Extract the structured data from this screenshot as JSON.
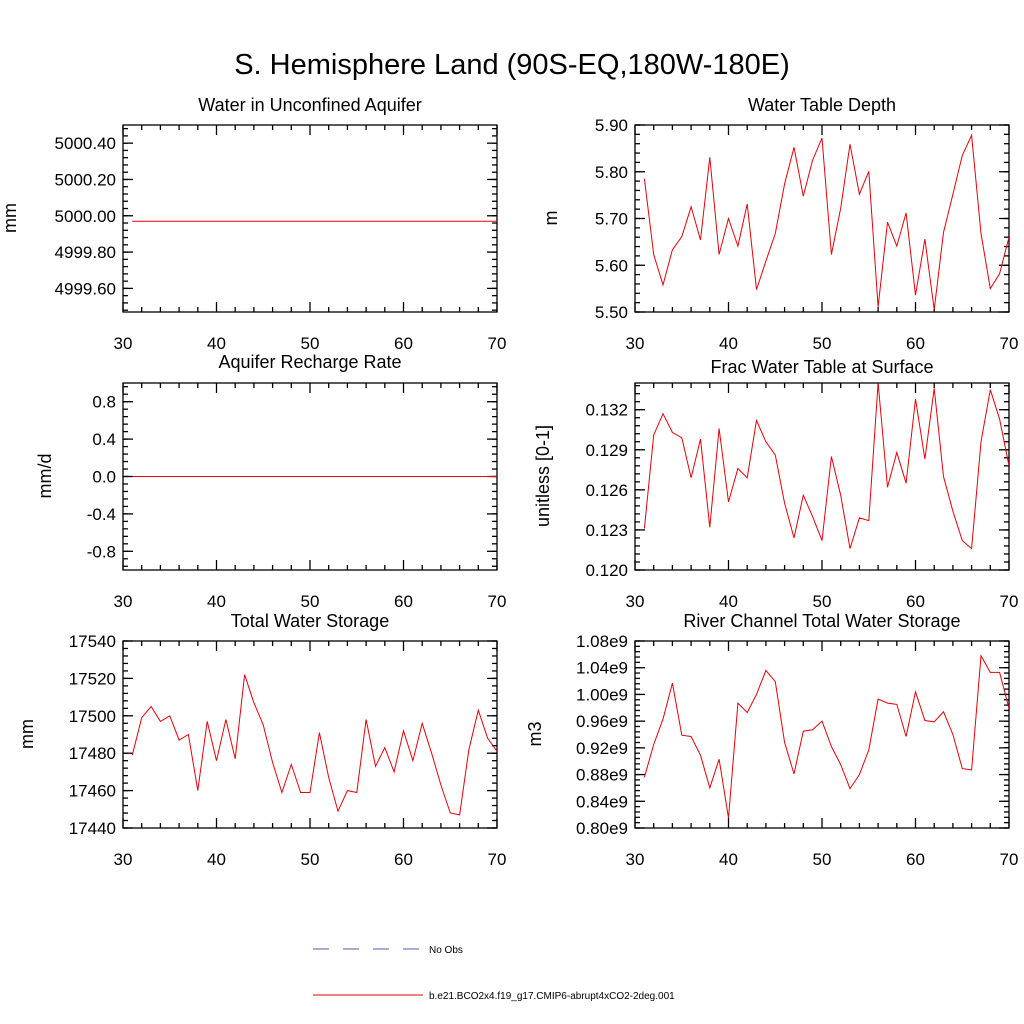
{
  "figure": {
    "title": "S. Hemisphere Land (90S-EQ,180W-180E)",
    "line_color": "#e8000b",
    "obs_color": "#4a5fb0",
    "axis_color": "#000000"
  },
  "legend": {
    "position": "bottom-center",
    "entries": [
      {
        "label": "No Obs",
        "style": "dashed",
        "color": "#4a5fb0"
      },
      {
        "label": "b.e21.BCO2x4.f19_g17.CMIP6-abrupt4xCO2-2deg.001",
        "style": "solid",
        "color": "#e8000b"
      }
    ]
  },
  "chart_data": [
    {
      "type": "line",
      "title": "Water in Unconfined Aquifer",
      "xlabel": "",
      "ylabel": "mm",
      "xlim": [
        30,
        70
      ],
      "ylim": [
        4999.47,
        5000.5
      ],
      "xticks": [
        30,
        40,
        50,
        60,
        70
      ],
      "yticks": [
        4999.6,
        4999.8,
        5000.0,
        5000.2,
        5000.4
      ],
      "ytick_labels": [
        "4999.60",
        "4999.80",
        "5000.00",
        "5000.20",
        "5000.40"
      ],
      "yminor_step": 0.04,
      "x": [
        31,
        70
      ],
      "y": [
        4999.97,
        4999.97
      ]
    },
    {
      "type": "line",
      "title": "Water Table Depth",
      "xlabel": "",
      "ylabel": "m",
      "xlim": [
        30,
        70
      ],
      "ylim": [
        5.5,
        5.9
      ],
      "xticks": [
        30,
        40,
        50,
        60,
        70
      ],
      "yticks": [
        5.5,
        5.6,
        5.7,
        5.8,
        5.9
      ],
      "ytick_labels": [
        "5.50",
        "5.60",
        "5.70",
        "5.80",
        "5.90"
      ],
      "yminor_step": 0.02,
      "x": [
        31,
        32,
        33,
        34,
        35,
        36,
        37,
        38,
        39,
        40,
        41,
        42,
        43,
        44,
        45,
        46,
        47,
        48,
        49,
        50,
        51,
        52,
        53,
        54,
        55,
        56,
        57,
        58,
        59,
        60,
        61,
        62,
        63,
        64,
        65,
        66,
        67,
        68,
        69,
        70
      ],
      "y": [
        5.785,
        5.623,
        5.558,
        5.633,
        5.661,
        5.725,
        5.654,
        5.831,
        5.623,
        5.7,
        5.641,
        5.731,
        5.548,
        5.609,
        5.668,
        5.774,
        5.852,
        5.748,
        5.825,
        5.872,
        5.623,
        5.722,
        5.859,
        5.752,
        5.801,
        5.511,
        5.692,
        5.641,
        5.712,
        5.536,
        5.656,
        5.505,
        5.67,
        5.752,
        5.835,
        5.878,
        5.668,
        5.55,
        5.582,
        5.66
      ]
    },
    {
      "type": "line",
      "title": "Aquifer Recharge Rate",
      "xlabel": "",
      "ylabel": "mm/d",
      "xlim": [
        30,
        70
      ],
      "ylim": [
        -1.0,
        1.0
      ],
      "xticks": [
        30,
        40,
        50,
        60,
        70
      ],
      "yticks": [
        -0.8,
        -0.4,
        0.0,
        0.4,
        0.8
      ],
      "ytick_labels": [
        "-0.8",
        "-0.4",
        "0.0",
        "0.4",
        "0.8"
      ],
      "yminor_step": 0.08,
      "x": [
        31,
        70
      ],
      "y": [
        0.0,
        0.0
      ]
    },
    {
      "type": "line",
      "title": "Frac Water Table at Surface",
      "xlabel": "",
      "ylabel": "unitless [0-1]",
      "xlim": [
        30,
        70
      ],
      "ylim": [
        0.12,
        0.134
      ],
      "xticks": [
        30,
        40,
        50,
        60,
        70
      ],
      "yticks": [
        0.12,
        0.123,
        0.126,
        0.129,
        0.132
      ],
      "ytick_labels": [
        "0.120",
        "0.123",
        "0.126",
        "0.129",
        "0.132"
      ],
      "yminor_step": 0.0006,
      "x": [
        31,
        32,
        33,
        34,
        35,
        36,
        37,
        38,
        39,
        40,
        41,
        42,
        43,
        44,
        45,
        46,
        47,
        48,
        49,
        50,
        51,
        52,
        53,
        54,
        55,
        56,
        57,
        58,
        59,
        60,
        61,
        62,
        63,
        64,
        65,
        66,
        67,
        68,
        69,
        70
      ],
      "y": [
        0.1231,
        0.1301,
        0.1317,
        0.1303,
        0.1299,
        0.1269,
        0.1298,
        0.1232,
        0.1306,
        0.1251,
        0.1276,
        0.1269,
        0.1312,
        0.1296,
        0.1286,
        0.125,
        0.1224,
        0.1256,
        0.124,
        0.1222,
        0.1285,
        0.1256,
        0.1216,
        0.1239,
        0.1237,
        0.134,
        0.1262,
        0.1288,
        0.1265,
        0.1328,
        0.1283,
        0.1336,
        0.127,
        0.1244,
        0.1222,
        0.1216,
        0.1296,
        0.1335,
        0.1313,
        0.1278
      ]
    },
    {
      "type": "line",
      "title": "Total Water Storage",
      "xlabel": "",
      "ylabel": "mm",
      "xlim": [
        30,
        70
      ],
      "ylim": [
        17440,
        17540
      ],
      "xticks": [
        30,
        40,
        50,
        60,
        70
      ],
      "yticks": [
        17440,
        17460,
        17480,
        17500,
        17520,
        17540
      ],
      "ytick_labels": [
        "17440",
        "17460",
        "17480",
        "17500",
        "17520",
        "17540"
      ],
      "yminor_step": 4,
      "x": [
        31,
        32,
        33,
        34,
        35,
        36,
        37,
        38,
        39,
        40,
        41,
        42,
        43,
        44,
        45,
        46,
        47,
        48,
        49,
        50,
        51,
        52,
        53,
        54,
        55,
        56,
        57,
        58,
        59,
        60,
        61,
        62,
        63,
        64,
        65,
        66,
        67,
        68,
        69,
        70
      ],
      "y": [
        17479,
        17499,
        17505,
        17497,
        17500,
        17487,
        17490,
        17460,
        17497,
        17476,
        17498,
        17477,
        17522,
        17507,
        17495,
        17475,
        17459,
        17474,
        17459,
        17459,
        17491,
        17467,
        17449,
        17460,
        17459,
        17498,
        17473,
        17483,
        17470,
        17492,
        17476,
        17496,
        17480,
        17463,
        17448,
        17447,
        17482,
        17503,
        17488,
        17481
      ]
    },
    {
      "type": "line",
      "title": "River Channel Total Water Storage",
      "xlabel": "",
      "ylabel": "m3",
      "xlim": [
        30,
        70
      ],
      "ylim": [
        0.8,
        1.08
      ],
      "xticks": [
        30,
        40,
        50,
        60,
        70
      ],
      "yticks": [
        0.8,
        0.84,
        0.88,
        0.92,
        0.96,
        1.0,
        1.04,
        1.08
      ],
      "ytick_labels": [
        "0.80e9",
        "0.84e9",
        "0.88e9",
        "0.92e9",
        "0.96e9",
        "1.00e9",
        "1.04e9",
        "1.08e9"
      ],
      "yminor_step": 0.008,
      "y_scale_note": "values in units of 1e9 m3",
      "x": [
        31,
        32,
        33,
        34,
        35,
        36,
        37,
        38,
        39,
        40,
        41,
        42,
        43,
        44,
        45,
        46,
        47,
        48,
        49,
        50,
        51,
        52,
        53,
        54,
        55,
        56,
        57,
        58,
        59,
        60,
        61,
        62,
        63,
        64,
        65,
        66,
        67,
        68,
        69,
        70
      ],
      "y": [
        0.876,
        0.925,
        0.963,
        1.017,
        0.939,
        0.937,
        0.909,
        0.86,
        0.903,
        0.815,
        0.987,
        0.973,
        1.0,
        1.036,
        1.019,
        0.928,
        0.881,
        0.945,
        0.947,
        0.96,
        0.922,
        0.895,
        0.859,
        0.88,
        0.917,
        0.993,
        0.987,
        0.985,
        0.937,
        1.004,
        0.961,
        0.959,
        0.974,
        0.94,
        0.889,
        0.887,
        1.058,
        1.033,
        1.033,
        0.979
      ]
    }
  ]
}
